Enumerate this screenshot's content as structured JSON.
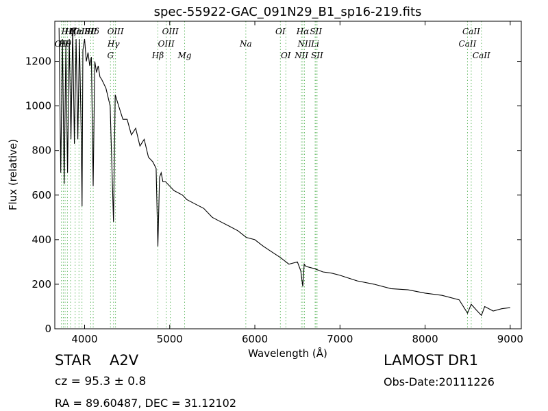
{
  "chart_data": {
    "type": "line",
    "title": "spec-55922-GAC_091N29_B1_sp16-219.fits",
    "xlabel": "Wavelength (Å)",
    "ylabel": "Flux (relative)",
    "xlim": [
      3650,
      9130
    ],
    "ylim": [
      0,
      1380
    ],
    "xticks": [
      4000,
      5000,
      6000,
      7000,
      8000,
      9000
    ],
    "yticks": [
      0,
      200,
      400,
      600,
      800,
      1000,
      1200
    ],
    "grid": false,
    "series": [
      {
        "color": "#000000",
        "x": [
          3700,
          3720,
          3740,
          3760,
          3780,
          3800,
          3820,
          3840,
          3860,
          3880,
          3900,
          3920,
          3940,
          3960,
          3970,
          3980,
          4000,
          4020,
          4040,
          4060,
          4080,
          4101,
          4120,
          4140,
          4160,
          4180,
          4200,
          4250,
          4300,
          4340,
          4360,
          4400,
          4450,
          4500,
          4550,
          4600,
          4650,
          4700,
          4750,
          4800,
          4840,
          4861,
          4880,
          4900,
          4920,
          4950,
          5000,
          5050,
          5100,
          5150,
          5200,
          5300,
          5400,
          5500,
          5600,
          5700,
          5800,
          5900,
          6000,
          6100,
          6200,
          6300,
          6400,
          6500,
          6540,
          6563,
          6580,
          6600,
          6700,
          6800,
          6900,
          7000,
          7200,
          7400,
          7600,
          7800,
          8000,
          8200,
          8400,
          8498,
          8542,
          8600,
          8662,
          8700,
          8800,
          8900,
          9000
        ],
        "y": [
          1350,
          700,
          1300,
          650,
          1280,
          700,
          1300,
          850,
          1350,
          830,
          1300,
          850,
          1300,
          880,
          550,
          1250,
          1300,
          1200,
          1240,
          1180,
          1220,
          640,
          1200,
          1150,
          1180,
          1130,
          1120,
          1080,
          1000,
          480,
          1050,
          1000,
          940,
          940,
          870,
          900,
          820,
          850,
          770,
          750,
          720,
          370,
          680,
          700,
          660,
          660,
          640,
          620,
          610,
          600,
          580,
          560,
          540,
          500,
          480,
          460,
          440,
          410,
          400,
          370,
          345,
          320,
          290,
          300,
          260,
          190,
          290,
          280,
          270,
          255,
          250,
          240,
          215,
          200,
          180,
          175,
          160,
          150,
          130,
          70,
          110,
          85,
          60,
          100,
          80,
          90,
          95
        ]
      }
    ],
    "annotations": {
      "line_labels": [
        "OII",
        "Hθ",
        "Hη",
        "Hζ",
        "Hε",
        "CaII",
        "CaII",
        "Hδ",
        "SII",
        "OIII",
        "Hγ",
        "G",
        "OIII",
        "Hβ",
        "OIII",
        "Mg",
        "Na",
        "OI",
        "OI",
        "Hα",
        "NII",
        "NII",
        "Li",
        "SII",
        "SII",
        "CaII",
        "CaII",
        "CaII"
      ]
    }
  },
  "info": {
    "class": "STAR",
    "subclass": "A2V",
    "cz": "cz = 95.3  ± 0.8",
    "survey": "LAMOST DR1",
    "obs_date": "Obs-Date:20111226",
    "coords": "RA = 89.60487, DEC = 31.12102"
  }
}
